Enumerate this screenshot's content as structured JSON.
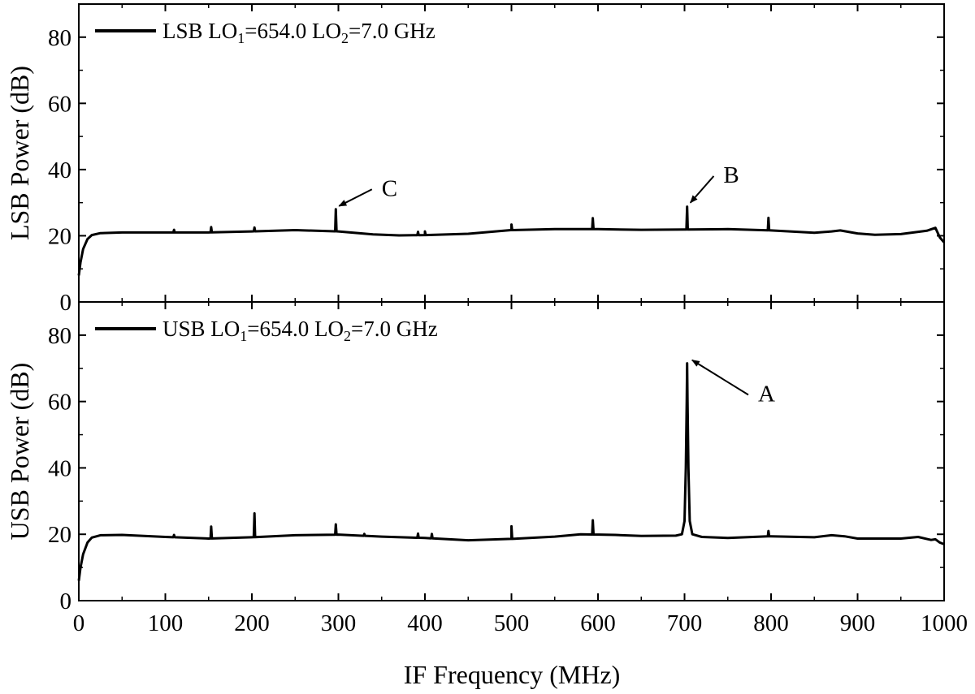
{
  "chart_data": {
    "type": "line",
    "xlabel": "IF Frequency (MHz)",
    "xlim": [
      0,
      1000
    ],
    "xticks": [
      0,
      100,
      200,
      300,
      400,
      500,
      600,
      700,
      800,
      900,
      1000
    ],
    "panels": [
      {
        "id": "lsb",
        "ylabel": "LSB Power (dB)",
        "ylim": [
          0,
          90
        ],
        "yticks": [
          0,
          20,
          40,
          60,
          80
        ],
        "legend": {
          "label": "LSB LO",
          "sub1": "1",
          "mid": "=654.0 LO",
          "sub2": "2",
          "tail": "=7.0 GHz",
          "placement": "top-left"
        },
        "baseline": [
          [
            0,
            8
          ],
          [
            2,
            12
          ],
          [
            5,
            16
          ],
          [
            10,
            19
          ],
          [
            15,
            20.2
          ],
          [
            25,
            20.8
          ],
          [
            50,
            21
          ],
          [
            100,
            21
          ],
          [
            150,
            21
          ],
          [
            200,
            21.3
          ],
          [
            250,
            21.7
          ],
          [
            300,
            21.3
          ],
          [
            340,
            20.4
          ],
          [
            370,
            20.1
          ],
          [
            400,
            20.2
          ],
          [
            450,
            20.6
          ],
          [
            500,
            21.7
          ],
          [
            550,
            22
          ],
          [
            600,
            22
          ],
          [
            650,
            21.8
          ],
          [
            700,
            21.9
          ],
          [
            750,
            22
          ],
          [
            800,
            21.6
          ],
          [
            850,
            20.9
          ],
          [
            870,
            21.3
          ],
          [
            880,
            21.6
          ],
          [
            900,
            20.7
          ],
          [
            920,
            20.3
          ],
          [
            950,
            20.5
          ],
          [
            980,
            21.5
          ],
          [
            990,
            22.4
          ],
          [
            995,
            19.5
          ],
          [
            1000,
            18
          ]
        ],
        "spikes": [
          [
            110,
            21.8
          ],
          [
            153,
            22.6
          ],
          [
            203,
            22.5
          ],
          [
            297,
            28
          ],
          [
            392,
            21.2
          ],
          [
            400,
            21.3
          ],
          [
            500,
            23.4
          ],
          [
            594,
            25.3
          ],
          [
            703,
            28.8
          ],
          [
            797,
            25.4
          ]
        ],
        "annotations": [
          {
            "text": "C",
            "x": 297,
            "y": 28,
            "label_x": 350,
            "label_y": 35
          },
          {
            "text": "B",
            "x": 703,
            "y": 29,
            "label_x": 745,
            "label_y": 39
          }
        ]
      },
      {
        "id": "usb",
        "ylabel": "USB Power (dB)",
        "ylim": [
          0,
          90
        ],
        "yticks": [
          0,
          20,
          40,
          60,
          80
        ],
        "legend": {
          "label": "USB LO",
          "sub1": "1",
          "mid": "=654.0 LO",
          "sub2": "2",
          "tail": "=7.0 GHz",
          "placement": "top-left"
        },
        "baseline": [
          [
            0,
            6
          ],
          [
            2,
            10
          ],
          [
            5,
            14
          ],
          [
            10,
            17.5
          ],
          [
            15,
            19
          ],
          [
            25,
            19.7
          ],
          [
            50,
            19.8
          ],
          [
            100,
            19.2
          ],
          [
            150,
            18.7
          ],
          [
            200,
            19.1
          ],
          [
            250,
            19.7
          ],
          [
            300,
            19.9
          ],
          [
            350,
            19.3
          ],
          [
            400,
            18.9
          ],
          [
            450,
            18.2
          ],
          [
            500,
            18.6
          ],
          [
            550,
            19.3
          ],
          [
            580,
            20
          ],
          [
            620,
            19.8
          ],
          [
            650,
            19.5
          ],
          [
            690,
            19.6
          ],
          [
            697,
            20
          ],
          [
            700,
            24
          ],
          [
            701.5,
            40
          ],
          [
            702.5,
            60
          ],
          [
            703,
            71.5
          ],
          [
            703.5,
            60
          ],
          [
            704.5,
            40
          ],
          [
            706,
            24
          ],
          [
            709,
            20
          ],
          [
            720,
            19.2
          ],
          [
            750,
            18.9
          ],
          [
            800,
            19.4
          ],
          [
            850,
            19.1
          ],
          [
            870,
            19.7
          ],
          [
            885,
            19.4
          ],
          [
            900,
            18.7
          ],
          [
            950,
            18.7
          ],
          [
            970,
            19.2
          ],
          [
            985,
            18.3
          ],
          [
            990,
            18.5
          ],
          [
            995,
            17.5
          ],
          [
            1000,
            17
          ]
        ],
        "spikes": [
          [
            110,
            19.8
          ],
          [
            153,
            22.3
          ],
          [
            203,
            26.3
          ],
          [
            297,
            23
          ],
          [
            330,
            20.1
          ],
          [
            392,
            20.2
          ],
          [
            408,
            20.1
          ],
          [
            500,
            22.4
          ],
          [
            594,
            24.2
          ],
          [
            797,
            21
          ]
        ],
        "annotations": [
          {
            "text": "A",
            "x": 705,
            "y": 71.5,
            "label_x": 785,
            "label_y": 63
          }
        ]
      }
    ]
  }
}
